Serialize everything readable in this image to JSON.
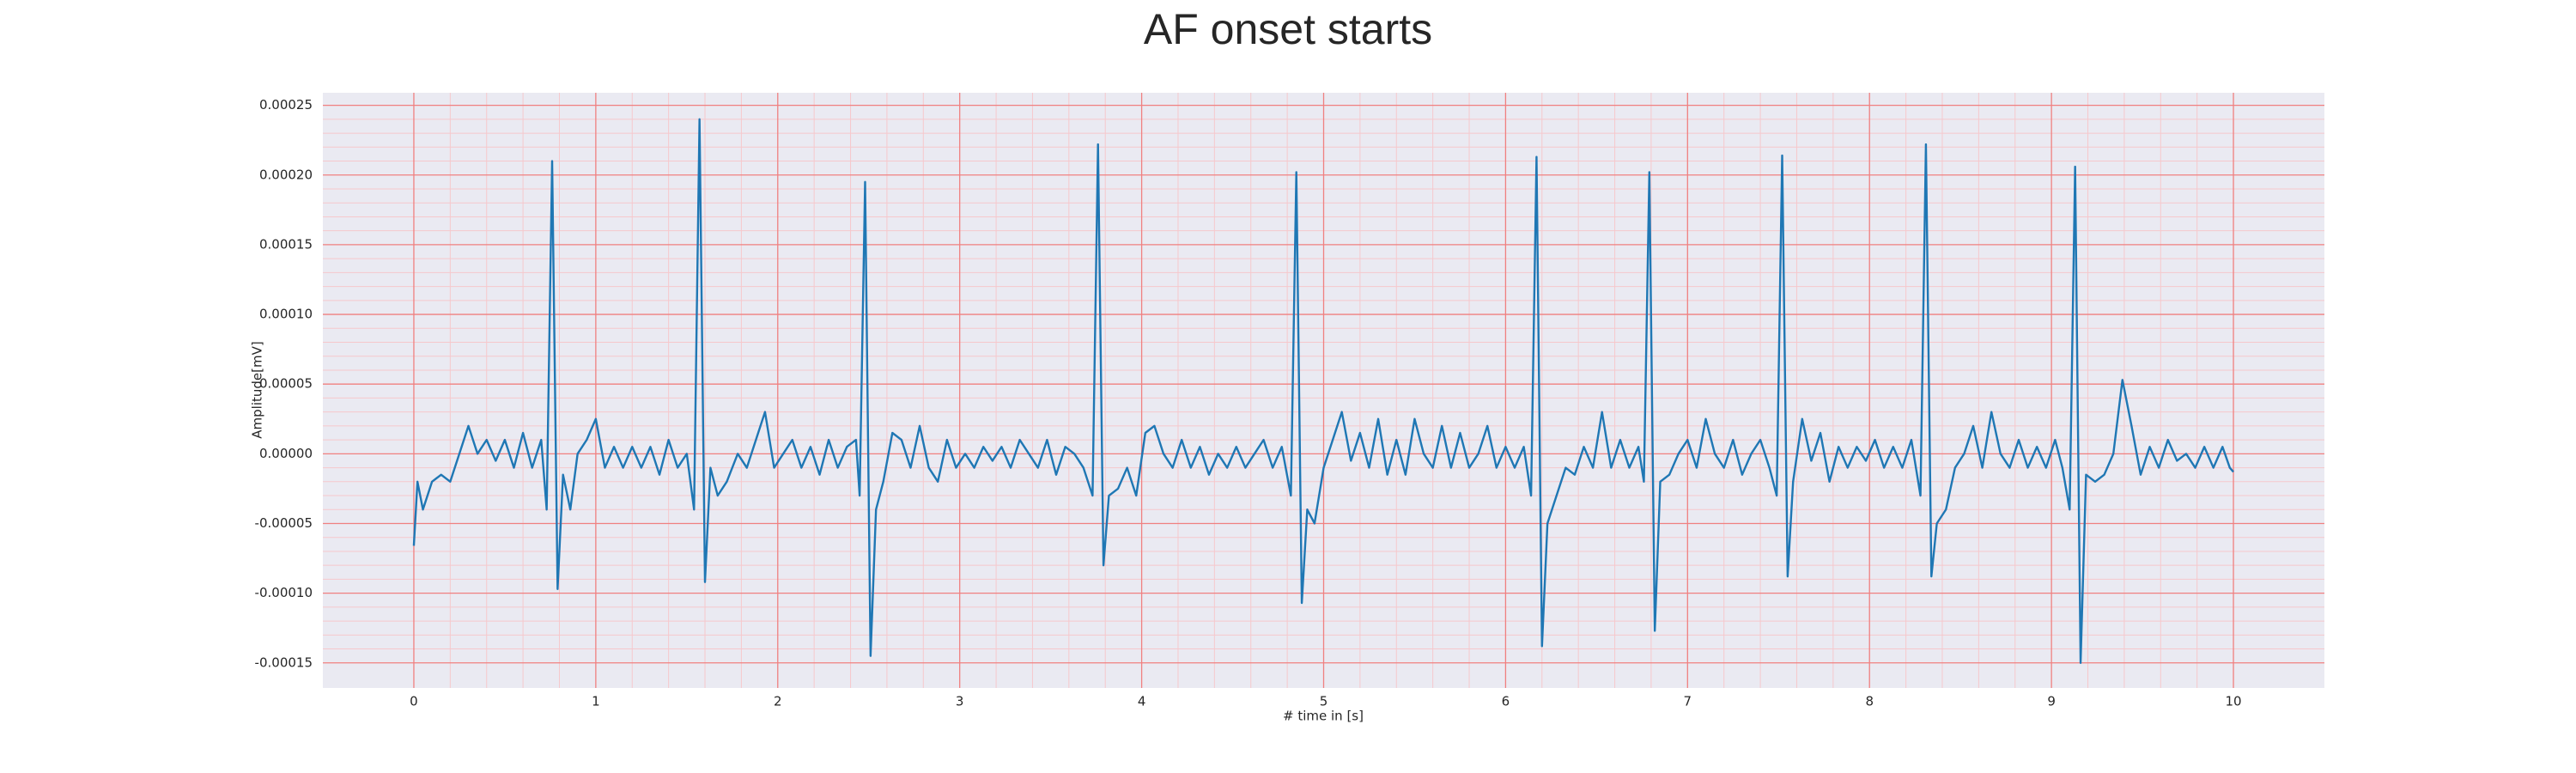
{
  "chart_data": {
    "type": "line",
    "title": "AF onset starts",
    "xlabel": "# time in [s]",
    "ylabel": "Amplitude[mV]",
    "color": "#1f77b4",
    "background": "#eaeaf2",
    "grid": true,
    "grid_color": "#f08080",
    "minor_grid": true,
    "minor_grid_color": "#f6c8cc",
    "xlim": [
      -0.5,
      10.5
    ],
    "xticks": [
      0,
      1,
      2,
      3,
      4,
      5,
      6,
      7,
      8,
      9,
      10
    ],
    "ylim": [
      -0.000168,
      0.000259
    ],
    "yticks": [
      -0.00015,
      {
        "value": -0.0001,
        "label": "-0.00010"
      },
      -5e-05,
      {
        "value": 0,
        "label": "0.00000"
      },
      5e-05,
      {
        "value": 0.0001,
        "label": "0.00010"
      },
      0.00015,
      {
        "value": 0.0002,
        "label": "0.00020"
      },
      0.00025
    ],
    "x": [
      0,
      0.02,
      0.05,
      0.1,
      0.15,
      0.2,
      0.25,
      0.3,
      0.35,
      0.4,
      0.45,
      0.5,
      0.55,
      0.6,
      0.65,
      0.7,
      0.73,
      0.76,
      0.79,
      0.82,
      0.86,
      0.9,
      0.95,
      1.0,
      1.05,
      1.1,
      1.15,
      1.2,
      1.25,
      1.3,
      1.35,
      1.4,
      1.45,
      1.5,
      1.54,
      1.57,
      1.6,
      1.63,
      1.67,
      1.72,
      1.78,
      1.83,
      1.88,
      1.93,
      1.98,
      2.03,
      2.08,
      2.13,
      2.18,
      2.23,
      2.28,
      2.33,
      2.38,
      2.43,
      2.45,
      2.48,
      2.51,
      2.54,
      2.58,
      2.63,
      2.68,
      2.73,
      2.78,
      2.83,
      2.88,
      2.93,
      2.98,
      3.03,
      3.08,
      3.13,
      3.18,
      3.23,
      3.28,
      3.33,
      3.38,
      3.43,
      3.48,
      3.53,
      3.58,
      3.63,
      3.68,
      3.73,
      3.76,
      3.79,
      3.82,
      3.87,
      3.92,
      3.97,
      4.02,
      4.07,
      4.12,
      4.17,
      4.22,
      4.27,
      4.32,
      4.37,
      4.42,
      4.47,
      4.52,
      4.57,
      4.62,
      4.67,
      4.72,
      4.77,
      4.82,
      4.85,
      4.88,
      4.91,
      4.95,
      5.0,
      5.05,
      5.1,
      5.15,
      5.2,
      5.25,
      5.3,
      5.35,
      5.4,
      5.45,
      5.5,
      5.55,
      5.6,
      5.65,
      5.7,
      5.75,
      5.8,
      5.85,
      5.9,
      5.95,
      6.0,
      6.05,
      6.1,
      6.14,
      6.17,
      6.2,
      6.23,
      6.28,
      6.33,
      6.38,
      6.43,
      6.48,
      6.53,
      6.58,
      6.63,
      6.68,
      6.73,
      6.76,
      6.79,
      6.82,
      6.85,
      6.9,
      6.95,
      7.0,
      7.05,
      7.1,
      7.15,
      7.2,
      7.25,
      7.3,
      7.35,
      7.4,
      7.45,
      7.49,
      7.52,
      7.55,
      7.58,
      7.63,
      7.68,
      7.73,
      7.78,
      7.83,
      7.88,
      7.93,
      7.98,
      8.03,
      8.08,
      8.13,
      8.18,
      8.23,
      8.28,
      8.31,
      8.34,
      8.37,
      8.42,
      8.47,
      8.52,
      8.57,
      8.62,
      8.67,
      8.72,
      8.77,
      8.82,
      8.87,
      8.92,
      8.97,
      9.02,
      9.06,
      9.1,
      9.13,
      9.16,
      9.19,
      9.24,
      9.29,
      9.34,
      9.39,
      9.44,
      9.49,
      9.54,
      9.59,
      9.64,
      9.69,
      9.74,
      9.79,
      9.84,
      9.89,
      9.94,
      9.98,
      10.0
    ],
    "values": [
      -6.6e-05,
      -2e-05,
      -4e-05,
      -2e-05,
      -1.5e-05,
      -2e-05,
      0,
      2e-05,
      0,
      1e-05,
      -5e-06,
      1e-05,
      -1e-05,
      1.5e-05,
      -1e-05,
      1e-05,
      -4e-05,
      0.00021,
      -9.7e-05,
      -1.5e-05,
      -4e-05,
      0,
      1e-05,
      2.5e-05,
      -1e-05,
      5e-06,
      -1e-05,
      5e-06,
      -1e-05,
      5e-06,
      -1.5e-05,
      1e-05,
      -1e-05,
      0,
      -4e-05,
      0.00024,
      -9.2e-05,
      -1e-05,
      -3e-05,
      -2e-05,
      0,
      -1e-05,
      1e-05,
      3e-05,
      -1e-05,
      0,
      1e-05,
      -1e-05,
      5e-06,
      -1.5e-05,
      1e-05,
      -1e-05,
      5e-06,
      1e-05,
      -3e-05,
      0.000195,
      -0.000145,
      -4e-05,
      -2e-05,
      1.5e-05,
      1e-05,
      -1e-05,
      2e-05,
      -1e-05,
      -2e-05,
      1e-05,
      -1e-05,
      0,
      -1e-05,
      5e-06,
      -5e-06,
      5e-06,
      -1e-05,
      1e-05,
      0,
      -1e-05,
      1e-05,
      -1.5e-05,
      5e-06,
      0,
      -1e-05,
      -3e-05,
      0.000222,
      -8e-05,
      -3e-05,
      -2.5e-05,
      -1e-05,
      -3e-05,
      1.5e-05,
      2e-05,
      0,
      -1e-05,
      1e-05,
      -1e-05,
      5e-06,
      -1.5e-05,
      0,
      -1e-05,
      5e-06,
      -1e-05,
      0,
      1e-05,
      -1e-05,
      5e-06,
      -3e-05,
      0.000202,
      -0.000107,
      -4e-05,
      -5e-05,
      -1e-05,
      1e-05,
      3e-05,
      -5e-06,
      1.5e-05,
      -1e-05,
      2.5e-05,
      -1.5e-05,
      1e-05,
      -1.5e-05,
      2.5e-05,
      0,
      -1e-05,
      2e-05,
      -1e-05,
      1.5e-05,
      -1e-05,
      0,
      2e-05,
      -1e-05,
      5e-06,
      -1e-05,
      5e-06,
      -3e-05,
      0.000213,
      -0.000138,
      -5e-05,
      -3e-05,
      -1e-05,
      -1.5e-05,
      5e-06,
      -1e-05,
      3e-05,
      -1e-05,
      1e-05,
      -1e-05,
      5e-06,
      -2e-05,
      0.000202,
      -0.000127,
      -2e-05,
      -1.5e-05,
      0,
      1e-05,
      -1e-05,
      2.5e-05,
      0,
      -1e-05,
      1e-05,
      -1.5e-05,
      0,
      1e-05,
      -1e-05,
      -3e-05,
      0.000214,
      -8.8e-05,
      -2e-05,
      2.5e-05,
      -5e-06,
      1.5e-05,
      -2e-05,
      5e-06,
      -1e-05,
      5e-06,
      -5e-06,
      1e-05,
      -1e-05,
      5e-06,
      -1e-05,
      1e-05,
      -3e-05,
      0.000222,
      -8.8e-05,
      -5e-05,
      -4e-05,
      -1e-05,
      0,
      2e-05,
      -1e-05,
      3e-05,
      0,
      -1e-05,
      1e-05,
      -1e-05,
      5e-06,
      -1e-05,
      1e-05,
      -1e-05,
      -4e-05,
      0.000206,
      -0.00015,
      -1.5e-05,
      -2e-05,
      -1.5e-05,
      0,
      5.3e-05,
      2e-05,
      -1.5e-05,
      5e-06,
      -1e-05,
      1e-05,
      -5e-06,
      0,
      -1e-05,
      5e-06,
      -1e-05,
      5e-06,
      -1e-05,
      -1.3e-05
    ]
  }
}
